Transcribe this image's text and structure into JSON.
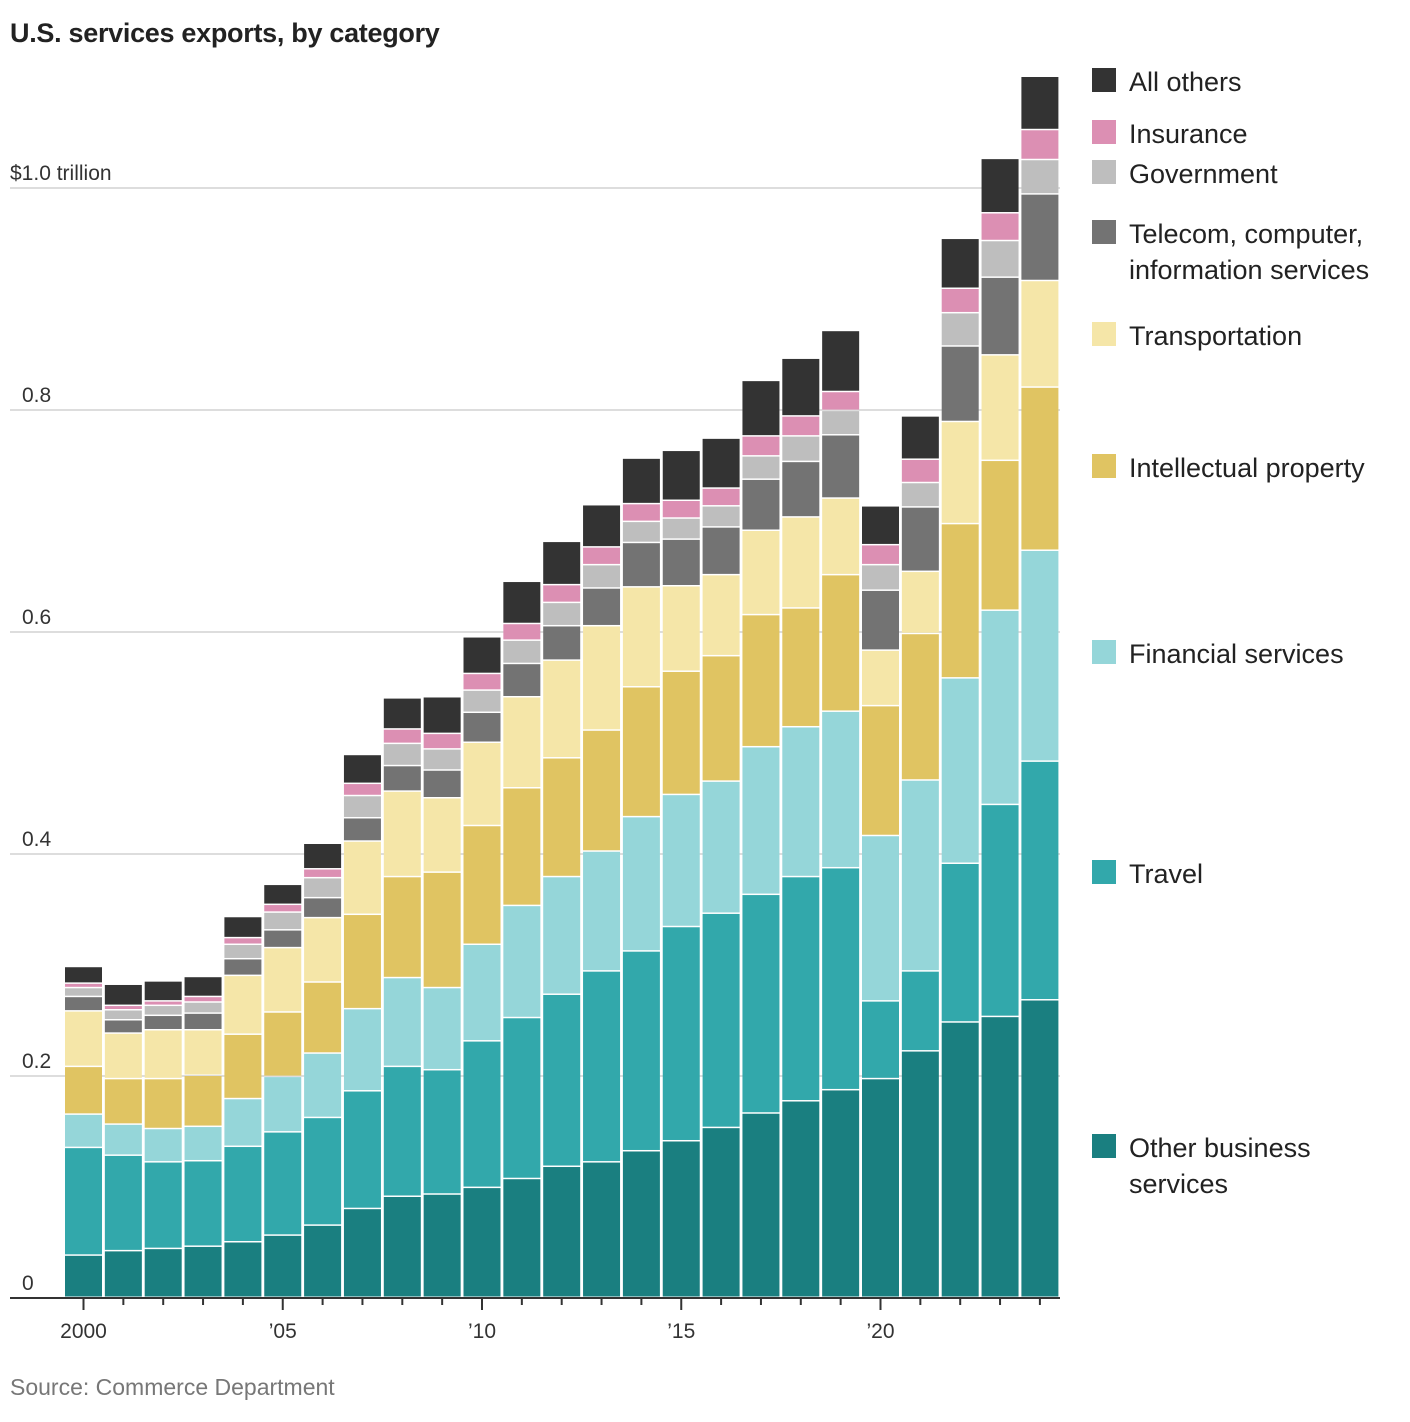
{
  "title": "U.S. services exports, by category",
  "source": "Source: Commerce Department",
  "chart_data": {
    "type": "bar",
    "stacked": true,
    "title": "U.S. services exports, by category",
    "xlabel": "",
    "ylabel": "",
    "unit": "trillion dollars",
    "ylim": [
      0,
      1.12
    ],
    "grid": true,
    "legend_position": "right",
    "y_ticks": [
      {
        "value": 0,
        "label": "0"
      },
      {
        "value": 0.2,
        "label": "0.2"
      },
      {
        "value": 0.4,
        "label": "0.4"
      },
      {
        "value": 0.6,
        "label": "0.6"
      },
      {
        "value": 0.8,
        "label": "0.8"
      },
      {
        "value": 1.0,
        "label": "$1.0 trillion"
      }
    ],
    "x_tick_labels": [
      {
        "year": 2000,
        "label": "2000"
      },
      {
        "year": 2005,
        "label": "’05"
      },
      {
        "year": 2010,
        "label": "’10"
      },
      {
        "year": 2015,
        "label": "’15"
      },
      {
        "year": 2020,
        "label": "’20"
      }
    ],
    "categories": [
      2000,
      2001,
      2002,
      2003,
      2004,
      2005,
      2006,
      2007,
      2008,
      2009,
      2010,
      2011,
      2012,
      2013,
      2014,
      2015,
      2016,
      2017,
      2018,
      2019,
      2020,
      2021,
      2022,
      2023,
      2024
    ],
    "series": [
      {
        "name": "Other business services",
        "color": "#1a7f80",
        "values": [
          0.038,
          0.042,
          0.044,
          0.046,
          0.05,
          0.056,
          0.065,
          0.08,
          0.091,
          0.093,
          0.099,
          0.107,
          0.118,
          0.122,
          0.132,
          0.141,
          0.153,
          0.166,
          0.177,
          0.187,
          0.197,
          0.222,
          0.248,
          0.253,
          0.268
        ]
      },
      {
        "name": "Travel",
        "color": "#32a8ab",
        "values": [
          0.097,
          0.086,
          0.078,
          0.077,
          0.086,
          0.093,
          0.097,
          0.106,
          0.117,
          0.112,
          0.132,
          0.145,
          0.155,
          0.172,
          0.18,
          0.193,
          0.193,
          0.197,
          0.202,
          0.2,
          0.07,
          0.072,
          0.143,
          0.191,
          0.215
        ]
      },
      {
        "name": "Financial services",
        "color": "#95d6d9",
        "values": [
          0.03,
          0.028,
          0.03,
          0.031,
          0.043,
          0.05,
          0.058,
          0.074,
          0.08,
          0.074,
          0.087,
          0.101,
          0.106,
          0.108,
          0.121,
          0.119,
          0.119,
          0.133,
          0.135,
          0.141,
          0.149,
          0.172,
          0.167,
          0.175,
          0.19
        ]
      },
      {
        "name": "Intellectual property",
        "color": "#e0c462",
        "values": [
          0.043,
          0.041,
          0.045,
          0.046,
          0.058,
          0.058,
          0.064,
          0.085,
          0.091,
          0.104,
          0.107,
          0.106,
          0.107,
          0.109,
          0.117,
          0.111,
          0.113,
          0.119,
          0.107,
          0.123,
          0.117,
          0.132,
          0.139,
          0.135,
          0.147
        ]
      },
      {
        "name": "Transportation",
        "color": "#f5e6a8",
        "values": [
          0.05,
          0.041,
          0.044,
          0.041,
          0.053,
          0.058,
          0.058,
          0.066,
          0.077,
          0.067,
          0.075,
          0.082,
          0.088,
          0.094,
          0.09,
          0.077,
          0.073,
          0.076,
          0.082,
          0.069,
          0.05,
          0.056,
          0.092,
          0.095,
          0.096
        ]
      },
      {
        "name": "Telecom, computer, information services",
        "color": "#737373",
        "values": [
          0.013,
          0.012,
          0.013,
          0.015,
          0.015,
          0.016,
          0.018,
          0.021,
          0.023,
          0.025,
          0.027,
          0.03,
          0.031,
          0.034,
          0.04,
          0.042,
          0.043,
          0.046,
          0.05,
          0.057,
          0.054,
          0.058,
          0.068,
          0.07,
          0.078
        ]
      },
      {
        "name": "Government",
        "color": "#bebebe",
        "values": [
          0.008,
          0.009,
          0.009,
          0.01,
          0.013,
          0.016,
          0.018,
          0.02,
          0.02,
          0.019,
          0.02,
          0.021,
          0.021,
          0.021,
          0.019,
          0.019,
          0.019,
          0.021,
          0.023,
          0.022,
          0.023,
          0.022,
          0.03,
          0.033,
          0.031
        ]
      },
      {
        "name": "Insurance",
        "color": "#dc8fb3",
        "values": [
          0.004,
          0.004,
          0.004,
          0.005,
          0.006,
          0.007,
          0.008,
          0.011,
          0.013,
          0.014,
          0.015,
          0.015,
          0.016,
          0.016,
          0.016,
          0.016,
          0.016,
          0.018,
          0.018,
          0.017,
          0.018,
          0.021,
          0.022,
          0.025,
          0.027
        ]
      },
      {
        "name": "All others",
        "color": "#333333",
        "values": [
          0.015,
          0.019,
          0.018,
          0.018,
          0.019,
          0.018,
          0.023,
          0.026,
          0.028,
          0.033,
          0.033,
          0.038,
          0.039,
          0.038,
          0.041,
          0.045,
          0.045,
          0.05,
          0.052,
          0.055,
          0.035,
          0.039,
          0.045,
          0.049,
          0.048
        ]
      }
    ]
  }
}
